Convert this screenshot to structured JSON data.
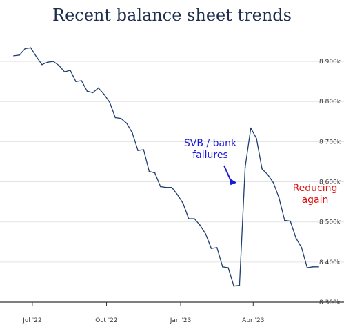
{
  "chart_data": {
    "type": "line",
    "title": "Recent balance sheet trends",
    "xlabel": "",
    "ylabel": "",
    "ylim": [
      8300,
      8950
    ],
    "yticks": [
      {
        "value": 8900,
        "label": "8 900k"
      },
      {
        "value": 8800,
        "label": "8 800k"
      },
      {
        "value": 8700,
        "label": "8 700k"
      },
      {
        "value": 8600,
        "label": "8 600k"
      },
      {
        "value": 8500,
        "label": "8 500k"
      },
      {
        "value": 8400,
        "label": "8 400k"
      },
      {
        "value": 8300,
        "label": "8 300k"
      }
    ],
    "xlim": [
      "2022-06-08",
      "2023-06-21"
    ],
    "xticks": [
      {
        "value": "2022-07-01",
        "label": "Jul '22"
      },
      {
        "value": "2022-10-01",
        "label": "Oct '22"
      },
      {
        "value": "2023-01-01",
        "label": "Jan '23"
      },
      {
        "value": "2023-04-01",
        "label": "Apr '23"
      }
    ],
    "grid": true,
    "series": [
      {
        "color": "#1f3f6f",
        "x": [
          "2022-06-08",
          "2022-06-15",
          "2022-06-22",
          "2022-06-29",
          "2022-07-06",
          "2022-07-13",
          "2022-07-20",
          "2022-07-27",
          "2022-08-03",
          "2022-08-10",
          "2022-08-17",
          "2022-08-24",
          "2022-08-31",
          "2022-09-07",
          "2022-09-14",
          "2022-09-21",
          "2022-09-28",
          "2022-10-05",
          "2022-10-12",
          "2022-10-19",
          "2022-10-26",
          "2022-11-02",
          "2022-11-09",
          "2022-11-16",
          "2022-11-23",
          "2022-11-30",
          "2022-12-07",
          "2022-12-14",
          "2022-12-21",
          "2022-12-28",
          "2023-01-04",
          "2023-01-11",
          "2023-01-18",
          "2023-01-25",
          "2023-02-01",
          "2023-02-08",
          "2023-02-15",
          "2023-02-22",
          "2023-03-01",
          "2023-03-08",
          "2023-03-15",
          "2023-03-22",
          "2023-03-29",
          "2023-04-05",
          "2023-04-12",
          "2023-04-19",
          "2023-04-26",
          "2023-05-03",
          "2023-05-10",
          "2023-05-17",
          "2023-05-24",
          "2023-05-31",
          "2023-06-07",
          "2023-06-14",
          "2023-06-21"
        ],
        "values": [
          8914,
          8916,
          8932,
          8934,
          8912,
          8892,
          8898,
          8900,
          8890,
          8874,
          8878,
          8850,
          8852,
          8826,
          8822,
          8834,
          8818,
          8798,
          8760,
          8758,
          8746,
          8722,
          8678,
          8680,
          8626,
          8622,
          8588,
          8586,
          8586,
          8568,
          8546,
          8508,
          8508,
          8492,
          8470,
          8434,
          8436,
          8388,
          8386,
          8340,
          8342,
          8636,
          8734,
          8708,
          8632,
          8618,
          8598,
          8560,
          8504,
          8502,
          8460,
          8436,
          8386,
          8388,
          8388
        ]
      }
    ],
    "annotations": [
      {
        "lines": [
          "SVB / bank",
          "failures"
        ],
        "color": "#1a1ad8",
        "arrow_to_x": "2023-03-15",
        "arrow_to_y": 8603
      },
      {
        "lines": [
          "Reducing",
          "again"
        ],
        "color": "#e01010"
      }
    ]
  }
}
